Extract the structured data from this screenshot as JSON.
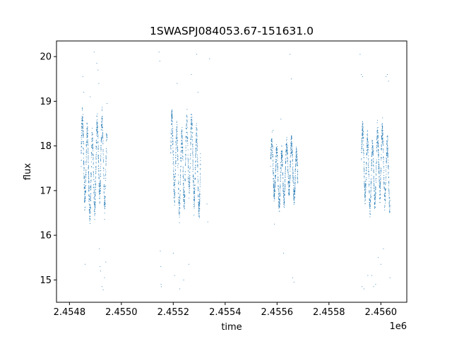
{
  "chart_data": {
    "type": "scatter",
    "title": "1SWASPJ084053.67-151631.0",
    "xlabel": "time",
    "ylabel": "flux",
    "x_offset_label": "1e6",
    "xlim": [
      2454750,
      2456100
    ],
    "ylim": [
      14.5,
      20.35
    ],
    "x_ticks": [
      2454800,
      2455000,
      2455200,
      2455400,
      2455600,
      2455800,
      2456000
    ],
    "x_tick_labels": [
      "2.4548",
      "2.4550",
      "2.4552",
      "2.4554",
      "2.4556",
      "2.4558",
      "2.4560"
    ],
    "y_ticks": [
      15,
      16,
      17,
      18,
      19,
      20
    ],
    "y_tick_labels": [
      "15",
      "16",
      "17",
      "18",
      "19",
      "20"
    ],
    "grid": false,
    "legend": "none",
    "marker_color": "#1f77b4",
    "series": [
      {
        "segments": [
          {
            "x_start": 2454845,
            "x_end": 2454945,
            "y_min": 16.2,
            "y_max": 18.9
          },
          {
            "x_start": 2455190,
            "x_end": 2455305,
            "y_min": 16.3,
            "y_max": 18.9
          },
          {
            "x_start": 2455575,
            "x_end": 2455680,
            "y_min": 16.5,
            "y_max": 18.3
          },
          {
            "x_start": 2455925,
            "x_end": 2456035,
            "y_min": 16.4,
            "y_max": 18.6
          }
        ],
        "points": [
          [
            2454851,
            19.55
          ],
          [
            2454855,
            19.2
          ],
          [
            2454860,
            15.35
          ],
          [
            2454880,
            19.1
          ],
          [
            2454895,
            20.1
          ],
          [
            2454905,
            19.85
          ],
          [
            2454910,
            19.7
          ],
          [
            2454913,
            19.4
          ],
          [
            2454915,
            15.7
          ],
          [
            2454918,
            15.3
          ],
          [
            2454920,
            15.2
          ],
          [
            2454925,
            14.85
          ],
          [
            2454930,
            14.78
          ],
          [
            2454935,
            15.05
          ],
          [
            2454940,
            15.4
          ],
          [
            2454945,
            18.95
          ],
          [
            2455145,
            20.1
          ],
          [
            2455148,
            19.9
          ],
          [
            2455150,
            15.65
          ],
          [
            2455152,
            15.3
          ],
          [
            2455153,
            14.9
          ],
          [
            2455154,
            14.85
          ],
          [
            2455200,
            15.6
          ],
          [
            2455205,
            15.1
          ],
          [
            2455215,
            19.4
          ],
          [
            2455225,
            14.8
          ],
          [
            2455240,
            15.0
          ],
          [
            2455260,
            15.35
          ],
          [
            2455270,
            19.6
          ],
          [
            2455275,
            18.3
          ],
          [
            2455280,
            16.45
          ],
          [
            2455290,
            20.05
          ],
          [
            2455295,
            19.2
          ],
          [
            2455330,
            16.7
          ],
          [
            2455333,
            16.3
          ],
          [
            2455340,
            19.95
          ],
          [
            2455585,
            18.35
          ],
          [
            2455590,
            16.25
          ],
          [
            2455615,
            18.6
          ],
          [
            2455625,
            15.6
          ],
          [
            2455650,
            20.05
          ],
          [
            2455655,
            19.5
          ],
          [
            2455660,
            15.05
          ],
          [
            2455665,
            14.95
          ],
          [
            2455920,
            20.05
          ],
          [
            2455925,
            19.6
          ],
          [
            2455930,
            19.55
          ],
          [
            2455928,
            14.85
          ],
          [
            2455935,
            14.8
          ],
          [
            2455950,
            15.1
          ],
          [
            2455965,
            15.1
          ],
          [
            2455972,
            14.85
          ],
          [
            2455980,
            14.9
          ],
          [
            2455990,
            15.5
          ],
          [
            2456000,
            15.35
          ],
          [
            2456010,
            15.7
          ],
          [
            2456020,
            19.55
          ],
          [
            2456025,
            19.6
          ],
          [
            2456030,
            19.45
          ],
          [
            2456035,
            15.05
          ]
        ]
      }
    ]
  }
}
